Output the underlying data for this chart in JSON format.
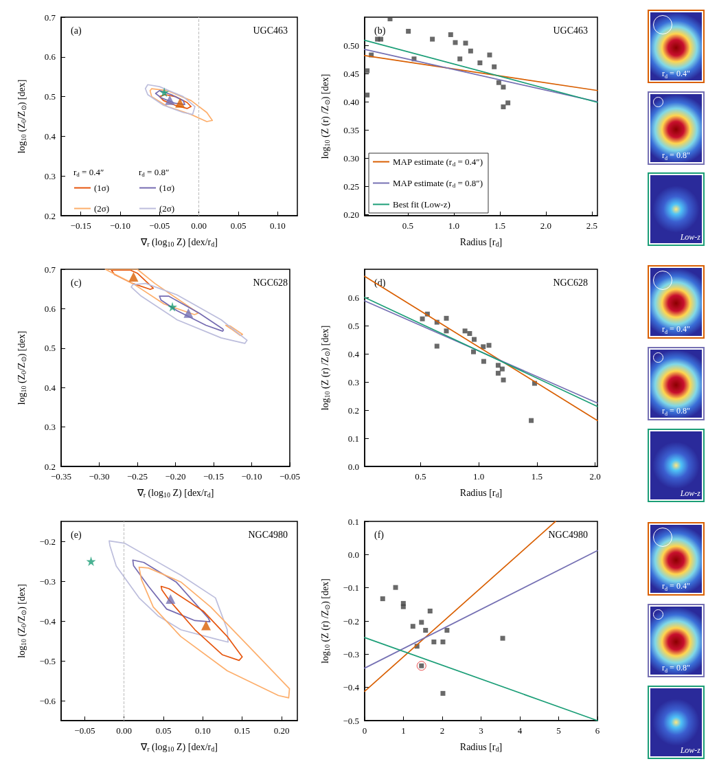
{
  "chart_data": [
    {
      "type": "line",
      "xlabel": "∇$_{r}$ (log$_{10}$ Z) [dex/r$_{d}$]",
      "ylabel": "log$_{10}$ (Z$_{0}$/Z$_{⊙}$) [dex]",
      "xlim": [
        -0.175,
        0.125
      ],
      "ylim": [
        0.2,
        0.7
      ],
      "xticks": [
        {
          "value": -0.15,
          "label": "−0.15"
        },
        {
          "value": -0.1,
          "label": "−0.10"
        },
        {
          "value": -0.05,
          "label": "−0.05"
        },
        {
          "value": 0,
          "label": "0.00"
        },
        {
          "value": 0.05,
          "label": "0.05"
        },
        {
          "value": 0.1,
          "label": "0.10"
        }
      ],
      "yticks": [
        0.2,
        0.3,
        0.4,
        0.5,
        0.6,
        0.7
      ],
      "annotations": [
        "(a)",
        "UGC463",
        "r$_{d}$ = 0.4″",
        "r$_{d}$ = 0.8″"
      ],
      "legend": "bottom left",
      "ref_lines": [
        {
          "axis": "x",
          "value": 0,
          "color": "#bbbbbb",
          "line_style": "dashed"
        }
      ],
      "series": [
        {
          "name": "(1σ)",
          "color": "#e6550d",
          "x": [
            -0.05,
            -0.043,
            -0.03,
            -0.015,
            -0.01,
            null,
            -0.05,
            -0.045,
            -0.03,
            -0.015,
            -0.01
          ],
          "values": [
            0.5,
            0.505,
            0.5,
            0.485,
            0.475,
            null,
            0.5,
            0.49,
            0.478,
            0.47,
            0.475
          ]
        },
        {
          "name": "(2σ)",
          "color": "#fdae6b",
          "x": [
            -0.062,
            -0.06,
            -0.04,
            -0.01,
            0.01,
            0.017,
            null,
            -0.062,
            -0.06,
            -0.04,
            -0.01,
            0.01,
            0.017
          ],
          "values": [
            0.515,
            0.52,
            0.515,
            0.49,
            0.46,
            0.44,
            null,
            0.515,
            0.5,
            0.475,
            0.455,
            0.437,
            0.44
          ]
        },
        {
          "name": "(1σ)",
          "color": "#756bb1",
          "x": [
            -0.055,
            -0.05,
            -0.035,
            -0.02,
            -0.018,
            null,
            -0.055,
            -0.048,
            -0.03,
            -0.018
          ],
          "values": [
            0.508,
            0.515,
            0.505,
            0.49,
            0.48,
            null,
            0.508,
            0.497,
            0.483,
            0.48
          ]
        },
        {
          "name": "(2σ)",
          "color": "#bcbddc",
          "x": [
            -0.068,
            -0.065,
            -0.05,
            -0.02,
            -0.005,
            null,
            -0.068,
            -0.065,
            -0.045,
            -0.02,
            -0.008,
            -0.005
          ],
          "values": [
            0.52,
            0.53,
            0.525,
            0.5,
            0.475,
            null,
            0.52,
            0.505,
            0.478,
            0.46,
            0.455,
            0.475
          ]
        },
        {
          "type": "scatter",
          "marker": "triangle",
          "color": "#d95f02",
          "x": [
            -0.024
          ],
          "values": [
            0.484
          ]
        },
        {
          "type": "scatter",
          "marker": "triangle",
          "color": "#7570b3",
          "x": [
            -0.037
          ],
          "values": [
            0.491
          ]
        },
        {
          "type": "scatter",
          "marker": "star",
          "color": "#1b9e77",
          "x": [
            -0.044
          ],
          "values": [
            0.511
          ]
        }
      ]
    },
    {
      "type": "line",
      "xlabel": "Radius [r$_{d}$]",
      "ylabel": "log$_{10}$ (Z (r) /Z$_{⊙}$) [dex]",
      "xlim": [
        0.03,
        2.56
      ],
      "ylim": [
        0.198,
        0.55
      ],
      "xticks": [
        0.5,
        {
          "value": 1,
          "label": "1.0"
        },
        1.5,
        {
          "value": 2,
          "label": "2.0"
        },
        2.5
      ],
      "yticks": [
        {
          "value": 0.2,
          "label": "0.20"
        },
        {
          "value": 0.25,
          "label": "0.25"
        },
        {
          "value": 0.3,
          "label": "0.30"
        },
        {
          "value": 0.35,
          "label": "0.35"
        },
        {
          "value": 0.4,
          "label": "0.40"
        },
        {
          "value": 0.45,
          "label": "0.45"
        },
        {
          "value": 0.5,
          "label": "0.50"
        }
      ],
      "annotations": [
        "(b)",
        "UGC463"
      ],
      "legend": "bottom left",
      "series": [
        {
          "type": "scatter",
          "marker": "square",
          "color": "#444444",
          "x": [
            0.306,
            0.102,
            0.169,
            0.206,
            0.766,
            1.127,
            1.182,
            1.438,
            1.488,
            1.537,
            1.537,
            1.283,
            1.388,
            0.567,
            1.065,
            0.057,
            0.057,
            0.965,
            0.505,
            1.587,
            1.015
          ],
          "values": [
            0.547,
            0.483,
            0.511,
            0.511,
            0.511,
            0.504,
            0.49,
            0.462,
            0.434,
            0.426,
            0.391,
            0.469,
            0.483,
            0.476,
            0.476,
            0.412,
            0.455,
            0.519,
            0.525,
            0.398,
            0.505
          ]
        },
        {
          "name": "MAP estimate (r$_{d}$ = 0.4″)",
          "color": "#d95f02",
          "x": [
            0.03,
            2.56
          ],
          "values": [
            0.482,
            0.42
          ]
        },
        {
          "name": "MAP estimate (r$_{d}$ = 0.8″)",
          "color": "#7570b3",
          "x": [
            0.03,
            2.56
          ],
          "values": [
            0.493,
            0.4
          ]
        },
        {
          "name": "Best fit (Low-z)",
          "color": "#1b9e77",
          "x": [
            0.03,
            2.56
          ],
          "values": [
            0.509,
            0.399
          ]
        }
      ]
    },
    {
      "type": "other",
      "annotations": [
        "r$_{d}$ = 0.4″",
        "r$_{d}$ = 0.8″",
        "Low-z"
      ]
    },
    {
      "type": "line",
      "xlabel": "∇$_{r}$ (log$_{10}$ Z) [dex/r$_{d}$]",
      "ylabel": "log$_{10}$ (Z$_{0}$/Z$_{⊙}$) [dex]",
      "xlim": [
        -0.35,
        -0.05
      ],
      "ylim": [
        0.2,
        0.7
      ],
      "xticks": [
        {
          "value": -0.35,
          "label": "−0.35"
        },
        {
          "value": -0.3,
          "label": "−0.30"
        },
        {
          "value": -0.25,
          "label": "−0.25"
        },
        {
          "value": -0.2,
          "label": "−0.20"
        },
        {
          "value": -0.15,
          "label": "−0.15"
        },
        {
          "value": -0.1,
          "label": "−0.10"
        },
        {
          "value": -0.05,
          "label": "−0.05"
        }
      ],
      "yticks": [
        0.2,
        0.3,
        0.4,
        0.5,
        0.6,
        0.7
      ],
      "annotations": [
        "(c)",
        "NGC628"
      ],
      "series": [
        {
          "color": "#e6550d",
          "x": [
            -0.284,
            -0.259,
            -0.25,
            -0.229,
            null,
            -0.284,
            -0.28,
            -0.256,
            -0.233,
            -0.229
          ],
          "values": [
            0.698,
            0.698,
            0.69,
            0.652,
            null,
            0.698,
            0.687,
            0.664,
            0.649,
            0.652
          ]
        },
        {
          "color": "#fdae6b",
          "x": [
            -0.292,
            -0.25,
            -0.227,
            -0.17,
            null,
            -0.292,
            -0.256,
            -0.215,
            -0.175,
            -0.17,
            null,
            -0.134,
            -0.128,
            -0.112,
            null,
            -0.134,
            -0.127,
            -0.115,
            -0.112
          ],
          "values": [
            0.7,
            0.7,
            0.664,
            0.589,
            null,
            0.7,
            0.664,
            0.612,
            0.585,
            0.589,
            null,
            0.558,
            0.556,
            0.535,
            null,
            0.558,
            0.549,
            0.532,
            0.535
          ]
        },
        {
          "color": "#756bb1",
          "x": [
            -0.221,
            -0.209,
            -0.169,
            -0.138,
            -0.137,
            null,
            -0.221,
            -0.219,
            -0.198,
            -0.16,
            -0.138,
            -0.137
          ],
          "values": [
            0.632,
            0.632,
            0.589,
            0.549,
            0.546,
            null,
            0.632,
            0.622,
            0.595,
            0.558,
            0.543,
            0.546
          ]
        },
        {
          "color": "#bcbddc",
          "x": [
            -0.258,
            -0.256,
            -0.239,
            -0.198,
            -0.14,
            -0.106,
            null,
            -0.258,
            -0.245,
            -0.198,
            -0.14,
            -0.109,
            -0.106
          ],
          "values": [
            0.655,
            0.661,
            0.664,
            0.635,
            0.572,
            0.52,
            null,
            0.655,
            0.632,
            0.572,
            0.526,
            0.512,
            0.52
          ]
        },
        {
          "type": "scatter",
          "marker": "triangle",
          "color": "#d95f02",
          "x": [
            -0.255
          ],
          "values": [
            0.681
          ]
        },
        {
          "type": "scatter",
          "marker": "triangle",
          "color": "#7570b3",
          "x": [
            -0.183
          ],
          "values": [
            0.589
          ]
        },
        {
          "type": "scatter",
          "marker": "star",
          "color": "#1b9e77",
          "x": [
            -0.204
          ],
          "values": [
            0.605
          ]
        }
      ]
    },
    {
      "type": "line",
      "xlabel": "Radius [r$_{d}$]",
      "ylabel": "log$_{10}$ (Z (r) /Z$_{⊙}$) [dex]",
      "xlim": [
        0.02,
        2.02
      ],
      "ylim": [
        0,
        0.7
      ],
      "xticks": [
        0.5,
        {
          "value": 1,
          "label": "1.0"
        },
        1.5,
        {
          "value": 2,
          "label": "2.0"
        }
      ],
      "yticks": [
        {
          "value": 0,
          "label": "0.0"
        },
        0.1,
        0.2,
        0.3,
        0.4,
        0.5,
        0.6
      ],
      "annotations": [
        "(d)",
        "NGC628"
      ],
      "series": [
        {
          "type": "scatter",
          "marker": "square",
          "color": "#444444",
          "x": [
            0.722,
            0.722,
            0.922,
            0.882,
            1.039,
            1.088,
            1.043,
            1.167,
            1.202,
            1.167,
            1.212,
            0.516,
            0.559,
            0.641,
            0.641,
            0.961,
            1.48,
            1.451,
            0.955
          ],
          "values": [
            0.481,
            0.526,
            0.472,
            0.481,
            0.425,
            0.43,
            0.373,
            0.359,
            0.346,
            0.331,
            0.307,
            0.524,
            0.541,
            0.427,
            0.512,
            0.451,
            0.295,
            0.163,
            0.407
          ]
        },
        {
          "color": "#d95f02",
          "x": [
            0.02,
            2.02
          ],
          "values": [
            0.675,
            0.163
          ]
        },
        {
          "color": "#7570b3",
          "x": [
            0.02,
            2.02
          ],
          "values": [
            0.588,
            0.225
          ]
        },
        {
          "color": "#1b9e77",
          "x": [
            0.02,
            2.02
          ],
          "values": [
            0.6,
            0.213
          ]
        }
      ]
    },
    {
      "type": "other",
      "annotations": [
        "r$_{d}$ = 0.4″",
        "r$_{d}$ = 0.8″",
        "Low-z"
      ]
    },
    {
      "type": "line",
      "xlabel": "∇$_{r}$ (log$_{10}$ Z) [dex/r$_{d}$]",
      "ylabel": "log$_{10}$ (Z$_{0}$/Z$_{⊙}$) [dex]",
      "xlim": [
        -0.08,
        0.22
      ],
      "ylim": [
        -0.65,
        -0.15
      ],
      "xticks": [
        {
          "value": -0.05,
          "label": "−0.05"
        },
        {
          "value": 0,
          "label": "0.00"
        },
        {
          "value": 0.05,
          "label": "0.05"
        },
        {
          "value": 0.1,
          "label": "0.10"
        },
        {
          "value": 0.15,
          "label": "0.15"
        },
        {
          "value": 0.2,
          "label": "0.20"
        }
      ],
      "yticks": [
        {
          "value": -0.6,
          "label": "−0.6"
        },
        {
          "value": -0.5,
          "label": "−0.5"
        },
        {
          "value": -0.4,
          "label": "−0.4"
        },
        {
          "value": -0.3,
          "label": "−0.3"
        },
        {
          "value": -0.2,
          "label": "−0.2"
        }
      ],
      "annotations": [
        "(e)",
        "NGC4980"
      ],
      "ref_lines": [
        {
          "axis": "x",
          "value": 0,
          "color": "#bbbbbb",
          "line_style": "dashed"
        }
      ],
      "series": [
        {
          "color": "#bcbddc",
          "x": [
            -0.019,
            0.001,
            0.031,
            0.072,
            0.116,
            0.131,
            0.132,
            null,
            -0.019,
            -0.018,
            -0.01,
            0.019,
            0.043,
            0.072,
            0.116,
            0.132
          ],
          "values": [
            -0.199,
            -0.205,
            -0.239,
            -0.285,
            -0.342,
            -0.422,
            -0.453,
            null,
            -0.199,
            -0.211,
            -0.262,
            -0.342,
            -0.387,
            -0.422,
            -0.445,
            -0.453
          ]
        },
        {
          "color": "#756bb1",
          "x": [
            0.011,
            0.025,
            0.066,
            0.107,
            0.109,
            null,
            0.011,
            0.012,
            0.031,
            0.054,
            0.09,
            0.109
          ],
          "values": [
            -0.247,
            -0.253,
            -0.302,
            -0.393,
            -0.402,
            null,
            -0.247,
            -0.261,
            -0.313,
            -0.37,
            -0.399,
            -0.402
          ]
        },
        {
          "color": "#fdae6b",
          "x": [
            0.019,
            0.031,
            0.072,
            0.11,
            0.16,
            0.21,
            null,
            0.019,
            0.022,
            0.037,
            0.072,
            0.131,
            0.196,
            0.209,
            0.21
          ],
          "values": [
            -0.265,
            -0.267,
            -0.302,
            -0.365,
            -0.467,
            -0.57,
            null,
            -0.265,
            -0.296,
            -0.365,
            -0.439,
            -0.525,
            -0.587,
            -0.593,
            -0.57
          ]
        },
        {
          "color": "#e6550d",
          "x": [
            0.047,
            0.057,
            0.101,
            0.131,
            0.15,
            null,
            0.047,
            0.048,
            0.057,
            0.09,
            0.125,
            0.146,
            0.15
          ],
          "values": [
            -0.313,
            -0.319,
            -0.376,
            -0.439,
            -0.49,
            null,
            -0.313,
            -0.322,
            -0.347,
            -0.422,
            -0.485,
            -0.499,
            -0.49
          ]
        },
        {
          "type": "scatter",
          "marker": "triangle",
          "color": "#d95f02",
          "x": [
            0.104
          ],
          "values": [
            -0.411
          ]
        },
        {
          "type": "scatter",
          "marker": "triangle",
          "color": "#7570b3",
          "x": [
            0.059
          ],
          "values": [
            -0.345
          ]
        },
        {
          "type": "scatter",
          "marker": "star",
          "color": "#1b9e77",
          "x": [
            -0.042
          ],
          "values": [
            -0.25
          ]
        }
      ]
    },
    {
      "type": "line",
      "xlabel": "Radius [r$_{d}$]",
      "ylabel": "log$_{10}$ (Z (r) /Z$_{⊙}$) [dex]",
      "xlim": [
        0,
        6
      ],
      "ylim": [
        -0.5,
        0.1
      ],
      "xticks": [
        0,
        1,
        2,
        3,
        4,
        5,
        6
      ],
      "yticks": [
        {
          "value": -0.5,
          "label": "−0.5"
        },
        {
          "value": -0.4,
          "label": "−0.4"
        },
        {
          "value": -0.3,
          "label": "−0.3"
        },
        {
          "value": -0.2,
          "label": "−0.2"
        },
        {
          "value": -0.1,
          "label": "−0.1"
        },
        {
          "value": 0,
          "label": "0.0"
        },
        0.1
      ],
      "annotations": [
        "(f)",
        "NGC4980"
      ],
      "series": [
        {
          "type": "scatter",
          "marker": "square",
          "color": "#444444",
          "x": [
            1.244,
            1.349,
            1.465,
            2.017,
            1.465,
            1.57,
            1.785,
            2.017,
            2.122,
            3.558,
            0.797,
            0.997,
            0.997,
            1.686,
            0.465
          ],
          "values": [
            -0.216,
            -0.276,
            -0.335,
            -0.418,
            -0.204,
            -0.228,
            -0.263,
            -0.263,
            -0.228,
            -0.252,
            -0.099,
            -0.147,
            -0.157,
            -0.17,
            -0.133
          ]
        },
        {
          "type": "scatter",
          "marker": "circle",
          "color": "#e31a1c",
          "x": [
            1.465
          ],
          "values": [
            -0.335
          ]
        },
        {
          "color": "#d95f02",
          "x": [
            0,
            4.92
          ],
          "values": [
            -0.412,
            0.1
          ]
        },
        {
          "color": "#7570b3",
          "x": [
            0,
            6
          ],
          "values": [
            -0.342,
            0.012
          ]
        },
        {
          "color": "#1b9e77",
          "x": [
            0,
            6
          ],
          "values": [
            -0.25,
            -0.5
          ]
        }
      ]
    },
    {
      "type": "other",
      "annotations": [
        "r$_{d}$ = 0.4″",
        "r$_{d}$ = 0.8″",
        "Low-z"
      ]
    }
  ]
}
